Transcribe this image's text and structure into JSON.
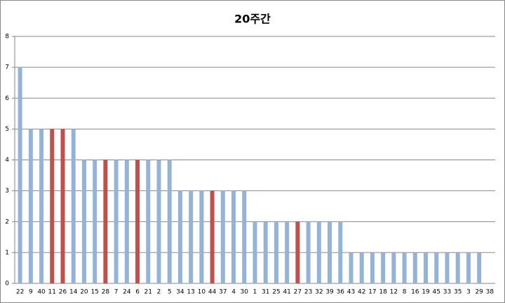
{
  "chart_data": {
    "type": "bar",
    "title": "20주간",
    "categories": [
      "22",
      "9",
      "40",
      "11",
      "26",
      "14",
      "20",
      "15",
      "28",
      "7",
      "24",
      "6",
      "21",
      "2",
      "5",
      "34",
      "13",
      "10",
      "44",
      "37",
      "4",
      "30",
      "1",
      "31",
      "25",
      "41",
      "27",
      "23",
      "32",
      "39",
      "36",
      "43",
      "42",
      "17",
      "18",
      "12",
      "8",
      "16",
      "19",
      "45",
      "33",
      "35",
      "3",
      "29",
      "38"
    ],
    "values": [
      7,
      5,
      5,
      5,
      5,
      5,
      4,
      4,
      4,
      4,
      4,
      4,
      4,
      4,
      4,
      3,
      3,
      3,
      3,
      3,
      3,
      3,
      2,
      2,
      2,
      2,
      2,
      2,
      2,
      2,
      2,
      1,
      1,
      1,
      1,
      1,
      1,
      1,
      1,
      1,
      1,
      1,
      1,
      1,
      0
    ],
    "colors": [
      "#95b3d7",
      "#95b3d7",
      "#95b3d7",
      "#c0504d",
      "#c0504d",
      "#95b3d7",
      "#95b3d7",
      "#95b3d7",
      "#c0504d",
      "#95b3d7",
      "#95b3d7",
      "#c0504d",
      "#95b3d7",
      "#95b3d7",
      "#95b3d7",
      "#95b3d7",
      "#95b3d7",
      "#95b3d7",
      "#c0504d",
      "#95b3d7",
      "#95b3d7",
      "#95b3d7",
      "#95b3d7",
      "#95b3d7",
      "#95b3d7",
      "#95b3d7",
      "#c0504d",
      "#95b3d7",
      "#95b3d7",
      "#95b3d7",
      "#95b3d7",
      "#95b3d7",
      "#95b3d7",
      "#95b3d7",
      "#95b3d7",
      "#95b3d7",
      "#95b3d7",
      "#95b3d7",
      "#95b3d7",
      "#95b3d7",
      "#95b3d7",
      "#95b3d7",
      "#95b3d7",
      "#95b3d7",
      "#95b3d7"
    ],
    "ylim": [
      0,
      8
    ],
    "yticks": [
      0,
      1,
      2,
      3,
      4,
      5,
      6,
      7,
      8
    ],
    "grid": true
  }
}
